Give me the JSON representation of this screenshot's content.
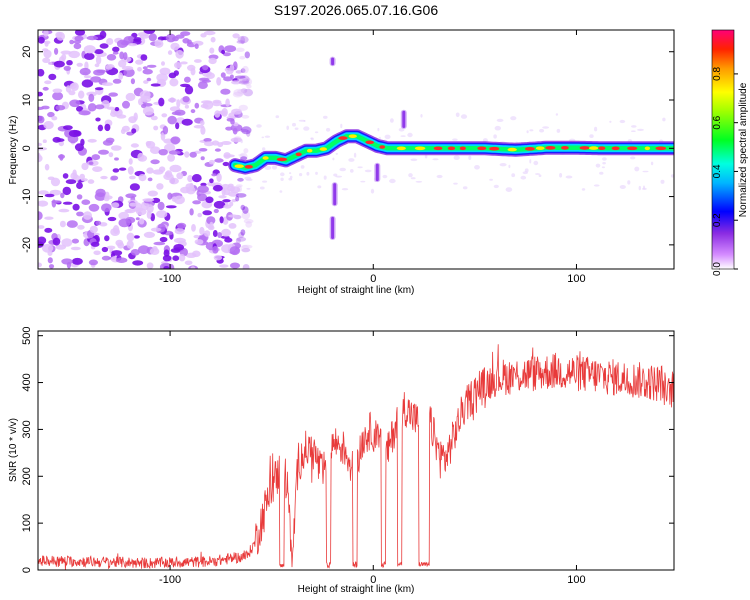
{
  "title": "S197.2026.065.07.16.G06",
  "colors": {
    "snr_line": "#e83a3a",
    "spec_noise": "#8a2be2",
    "ridge_core": "#ff2a2a",
    "ridge_edge": "#00d8ff"
  },
  "chart_data": [
    {
      "type": "heatmap",
      "name": "spectrogram",
      "xlabel": "Height of straight line (km)",
      "ylabel": "Frequency (Hz)",
      "xlim": [
        -165,
        148
      ],
      "ylim": [
        -25,
        24.5
      ],
      "xticks": [
        -100,
        0,
        100
      ],
      "xtick_labels": [
        "-100",
        "0",
        "100"
      ],
      "yticks": [
        20,
        10,
        0,
        -10,
        -20
      ],
      "ytick_labels": [
        "20",
        "10",
        "0",
        "-10",
        "-20"
      ],
      "noise_region_x": [
        -165,
        -67
      ],
      "ridge": {
        "x": [
          -68,
          -63,
          -58,
          -53,
          -48,
          -43,
          -38,
          -33,
          -28,
          -23,
          -18,
          -13,
          -8,
          -3,
          2,
          7,
          12,
          17,
          22,
          30,
          40,
          55,
          70,
          85,
          100,
          115,
          130,
          148
        ],
        "freq": [
          -3.5,
          -4,
          -3.5,
          -2,
          -2,
          -2.5,
          -1.5,
          -0.5,
          -0.5,
          0,
          1.5,
          2.5,
          2.5,
          1.5,
          0.5,
          0,
          0,
          0,
          0,
          0,
          0,
          0,
          -0.3,
          0.1,
          0.1,
          0,
          0,
          0
        ]
      },
      "artifacts": [
        {
          "x": -20,
          "freq_range": [
            17,
            19
          ]
        },
        {
          "x": -20,
          "freq_range": [
            -19,
            -14
          ]
        },
        {
          "x": -19,
          "freq_range": [
            -12,
            -7
          ]
        },
        {
          "x": 2,
          "freq_range": [
            -7,
            -3
          ]
        },
        {
          "x": 15,
          "freq_range": [
            4,
            8
          ]
        }
      ],
      "colorbar": {
        "label": "Normalized spectral amplitude",
        "ticks": [
          0.0,
          0.2,
          0.4,
          0.6,
          0.8
        ],
        "tick_labels": [
          "0.0",
          "0.2",
          "0.4",
          "0.6",
          "0.8"
        ],
        "range": [
          0,
          0.98
        ]
      }
    },
    {
      "type": "line",
      "name": "snr",
      "xlabel": "Height of straight line (km)",
      "ylabel": "SNR (10 * v/v)",
      "xlim": [
        -165,
        148
      ],
      "ylim": [
        0,
        510
      ],
      "xticks": [
        -100,
        0,
        100
      ],
      "xtick_labels": [
        "-100",
        "0",
        "100"
      ],
      "yticks": [
        0,
        100,
        200,
        300,
        400,
        500
      ],
      "ytick_labels": [
        "0",
        "100",
        "200",
        "300",
        "400",
        "500"
      ],
      "profile_x": [
        -165,
        -140,
        -110,
        -80,
        -62,
        -58,
        -54,
        -50,
        -46,
        -42,
        -40,
        -37,
        -33,
        -29,
        -25,
        -21,
        -17,
        -13,
        -9,
        -5,
        -1,
        3,
        7,
        11,
        15,
        19,
        23,
        27,
        31,
        33,
        36,
        40,
        44,
        50,
        60,
        70,
        80,
        90,
        100,
        110,
        120,
        130,
        138,
        142,
        145,
        148
      ],
      "profile_y": [
        20,
        18,
        15,
        18,
        30,
        60,
        120,
        180,
        210,
        190,
        10,
        230,
        260,
        250,
        200,
        270,
        270,
        250,
        200,
        280,
        300,
        270,
        250,
        310,
        350,
        330,
        310,
        330,
        270,
        240,
        240,
        290,
        340,
        380,
        410,
        415,
        420,
        425,
        420,
        415,
        410,
        405,
        400,
        400,
        370,
        395
      ],
      "dropouts": [
        {
          "x": -45,
          "width": 2
        },
        {
          "x": -22,
          "width": 2
        },
        {
          "x": -9,
          "width": 2
        },
        {
          "x": 5,
          "width": 2
        },
        {
          "x": 13,
          "width": 2
        },
        {
          "x": 25,
          "width": 5
        }
      ]
    }
  ]
}
